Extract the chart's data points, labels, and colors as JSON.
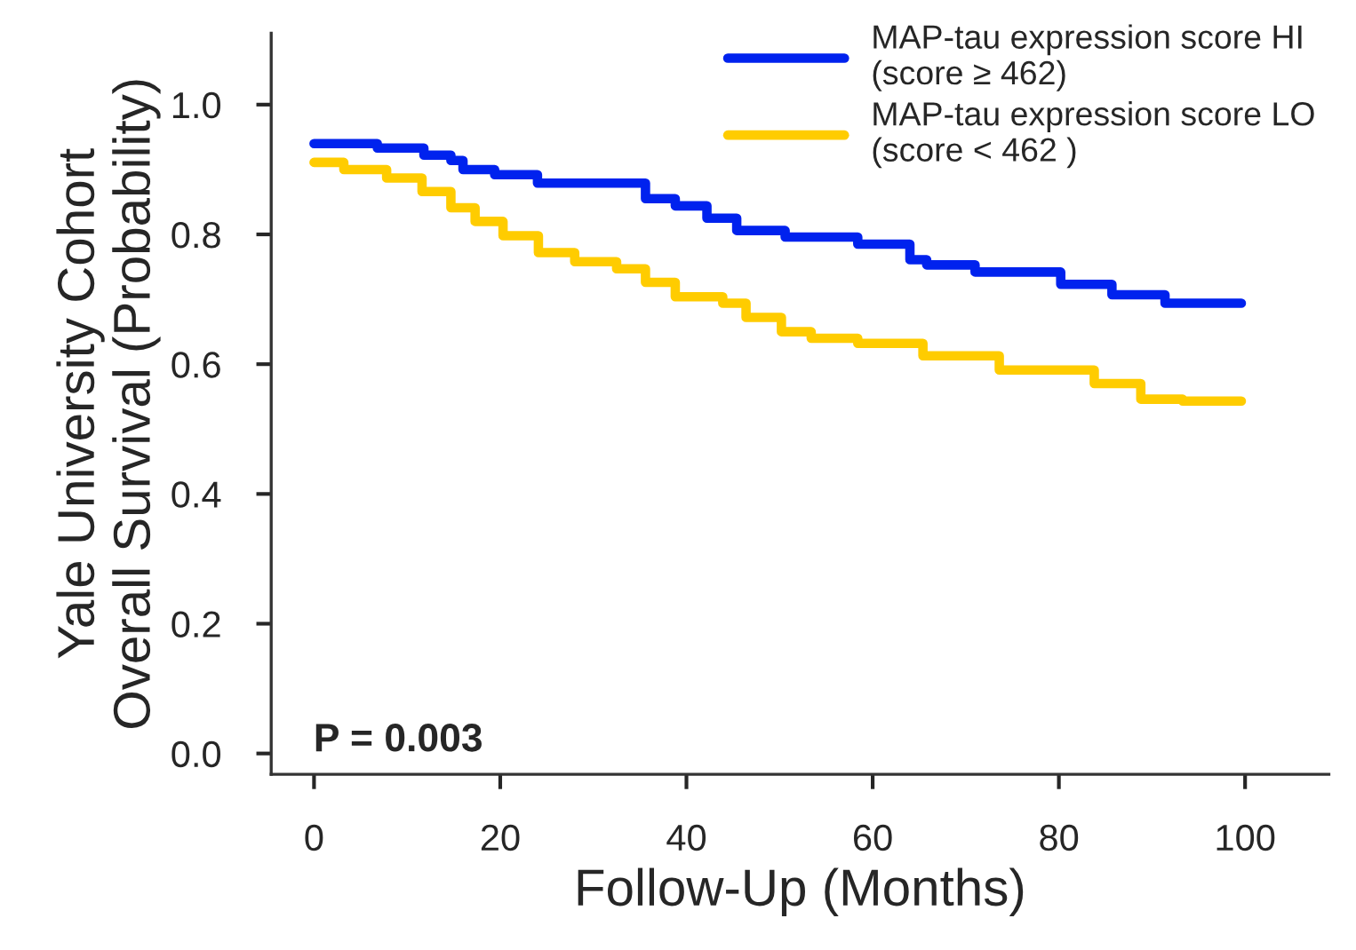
{
  "chart_data": {
    "type": "step",
    "xlabel": "Follow-Up (Months)",
    "ylabel": "Yale University Cohort\nOverall Survival (Probability)",
    "xlim": [
      -4.6,
      109
    ],
    "ylim": [
      -0.032,
      1.11
    ],
    "xticks": [
      0,
      20,
      40,
      60,
      80,
      100
    ],
    "yticks": [
      {
        "value": 0,
        "label": "0.0"
      },
      {
        "value": 0.2,
        "label": "0.2"
      },
      {
        "value": 0.4,
        "label": "0.4"
      },
      {
        "value": 0.6,
        "label": "0.6"
      },
      {
        "value": 0.8,
        "label": "0.8"
      },
      {
        "value": 1,
        "label": "1.0"
      }
    ],
    "grid": false,
    "legend": "top right",
    "line_style": "solid",
    "marker": "none",
    "annotations": [
      "P = 0.003"
    ],
    "series": [
      {
        "name": "MAP-tau expression score HI\n(score ≥ 462)",
        "color": "#0022ee",
        "x": [
          0,
          6.8,
          11.8,
          14.7,
          16,
          19.4,
          24,
          35.6,
          38.8,
          42.2,
          45.4,
          50.6,
          58.4,
          64,
          65.8,
          71,
          80.2,
          85.7,
          91.4,
          99.6
        ],
        "values": [
          0.94,
          0.933,
          0.922,
          0.914,
          0.9,
          0.892,
          0.879,
          0.855,
          0.844,
          0.825,
          0.806,
          0.796,
          0.785,
          0.761,
          0.753,
          0.742,
          0.723,
          0.707,
          0.694,
          0.694
        ]
      },
      {
        "name": "MAP-tau expression score LO\n(score < 462 )",
        "color": "#ffcc00",
        "x": [
          0,
          3.2,
          7.8,
          11.6,
          14.7,
          17.3,
          20.3,
          24.1,
          28,
          32.5,
          35.6,
          38.8,
          43.9,
          46.4,
          50.2,
          53.4,
          58.4,
          65.4,
          73.6,
          83.8,
          88.8,
          93.3,
          99.6
        ],
        "values": [
          0.911,
          0.9,
          0.887,
          0.866,
          0.841,
          0.82,
          0.798,
          0.772,
          0.758,
          0.747,
          0.726,
          0.704,
          0.694,
          0.672,
          0.65,
          0.64,
          0.632,
          0.613,
          0.591,
          0.57,
          0.546,
          0.543,
          0.543
        ]
      }
    ]
  }
}
